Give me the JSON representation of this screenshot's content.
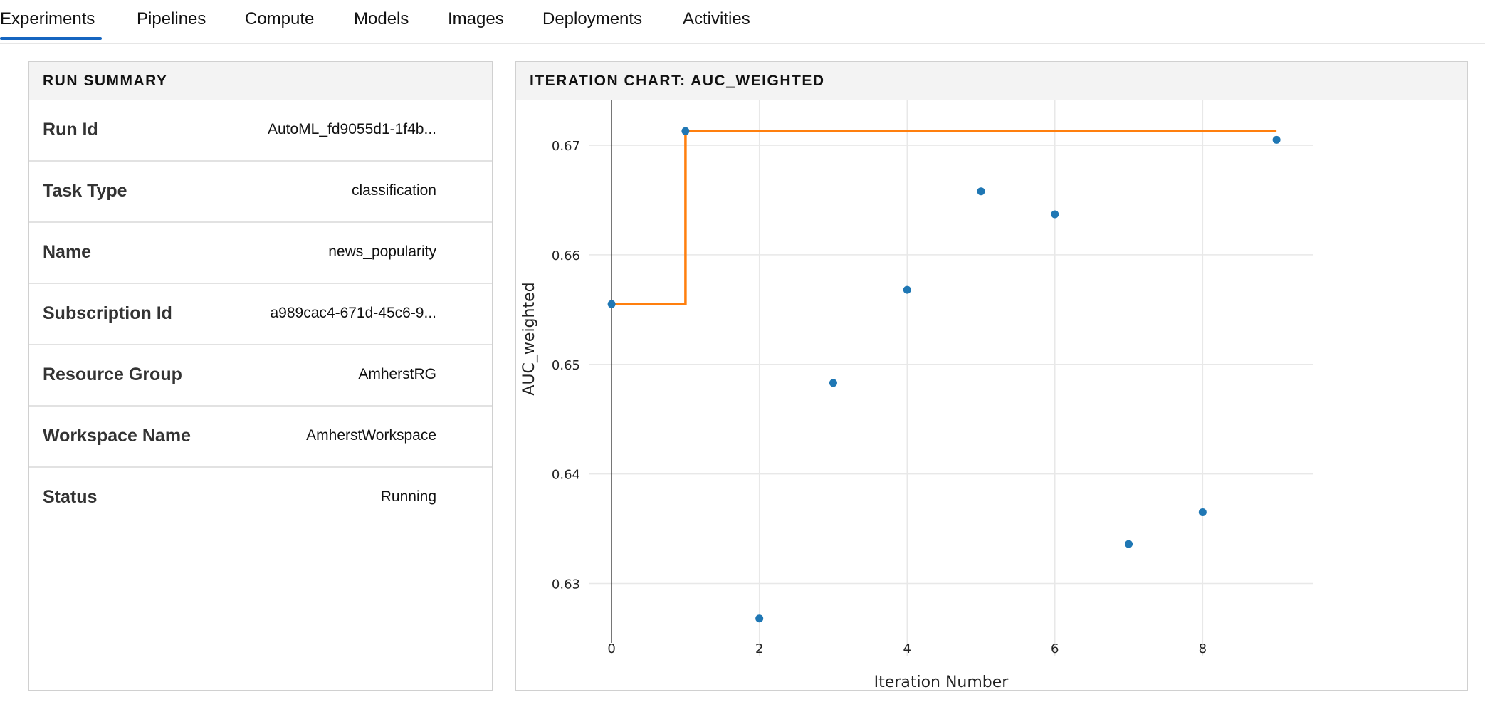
{
  "tabs": [
    {
      "label": "Experiments",
      "active": true
    },
    {
      "label": "Pipelines"
    },
    {
      "label": "Compute"
    },
    {
      "label": "Models"
    },
    {
      "label": "Images"
    },
    {
      "label": "Deployments"
    },
    {
      "label": "Activities"
    }
  ],
  "run_summary": {
    "title": "RUN SUMMARY",
    "rows": [
      {
        "key": "Run Id",
        "value": "AutoML_fd9055d1-1f4b..."
      },
      {
        "key": "Task Type",
        "value": "classification"
      },
      {
        "key": "Name",
        "value": "news_popularity"
      },
      {
        "key": "Subscription Id",
        "value": "a989cac4-671d-45c6-9..."
      },
      {
        "key": "Resource Group",
        "value": "AmherstRG"
      },
      {
        "key": "Workspace Name",
        "value": "AmherstWorkspace"
      },
      {
        "key": "Status",
        "value": "Running"
      }
    ]
  },
  "chart_panel": {
    "title": "ITERATION CHART: AUC_WEIGHTED"
  },
  "colors": {
    "accent": "#1565c0",
    "points": "#1f77b4",
    "best_line": "#ff7f0e"
  },
  "chart_data": {
    "type": "scatter",
    "xlabel": "Iteration Number",
    "ylabel": "AUC_weighted",
    "xlim": [
      -0.3,
      9.5
    ],
    "ylim": [
      0.6234,
      0.6741
    ],
    "xticks": [
      0,
      2,
      4,
      6,
      8
    ],
    "yticks": [
      0.63,
      0.64,
      0.65,
      0.66,
      0.67
    ],
    "grid": true,
    "legend": "none",
    "series": [
      {
        "kind": "points",
        "x": [
          0,
          1,
          2,
          3,
          4,
          5,
          6,
          7,
          8,
          9
        ],
        "y": [
          0.6555,
          0.6713,
          0.6268,
          0.6483,
          0.6568,
          0.6658,
          0.6637,
          0.6336,
          0.6365,
          0.6705
        ]
      },
      {
        "kind": "best-so-far-line",
        "x": [
          0,
          1,
          1,
          9
        ],
        "y": [
          0.6555,
          0.6555,
          0.6713,
          0.6713
        ]
      }
    ]
  }
}
